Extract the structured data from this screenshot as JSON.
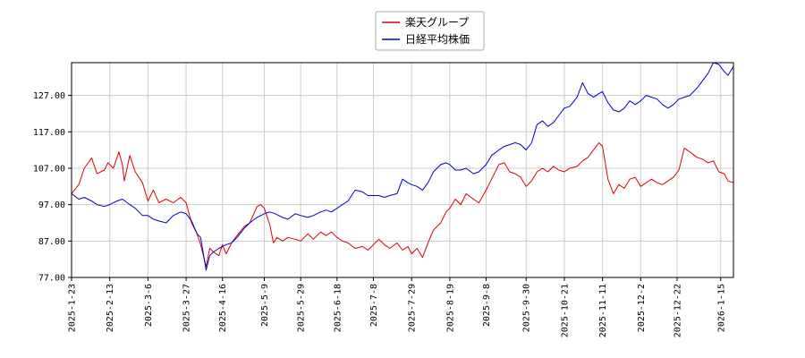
{
  "chart_data": {
    "type": "line",
    "title": "",
    "xlabel": "",
    "ylabel": "",
    "ylim": [
      77,
      136
    ],
    "x_range": [
      "2025-01-23",
      "2026-01-22"
    ],
    "yticks": [
      77,
      87,
      97,
      107,
      117,
      127
    ],
    "ytick_labels": [
      "77.00",
      "87.00",
      "97.00",
      "107.00",
      "117.00",
      "127.00"
    ],
    "xticks": [
      "2025-1-23",
      "2025-2-13",
      "2025-3-6",
      "2025-3-27",
      "2025-4-16",
      "2025-5-9",
      "2025-5-29",
      "2025-6-18",
      "2025-7-8",
      "2025-7-29",
      "2025-8-19",
      "2025-9-8",
      "2025-9-30",
      "2025-10-21",
      "2025-11-11",
      "2025-12-2",
      "2025-12-22",
      "2026-1-15"
    ],
    "grid": true,
    "legend_position": "top-center",
    "series": [
      {
        "name": "楽天グループ",
        "color": "#dd0000",
        "points": [
          [
            "2025-01-23",
            100.0
          ],
          [
            "2025-01-27",
            102.5
          ],
          [
            "2025-01-30",
            107.0
          ],
          [
            "2025-02-03",
            109.8
          ],
          [
            "2025-02-06",
            105.5
          ],
          [
            "2025-02-10",
            106.5
          ],
          [
            "2025-02-12",
            108.5
          ],
          [
            "2025-02-15",
            107.0
          ],
          [
            "2025-02-18",
            111.5
          ],
          [
            "2025-02-20",
            108.0
          ],
          [
            "2025-02-21",
            103.5
          ],
          [
            "2025-02-24",
            110.5
          ],
          [
            "2025-02-27",
            106.0
          ],
          [
            "2025-03-03",
            103.0
          ],
          [
            "2025-03-06",
            98.0
          ],
          [
            "2025-03-09",
            101.0
          ],
          [
            "2025-03-12",
            97.5
          ],
          [
            "2025-03-16",
            98.5
          ],
          [
            "2025-03-20",
            97.5
          ],
          [
            "2025-03-24",
            99.0
          ],
          [
            "2025-03-27",
            97.5
          ],
          [
            "2025-03-30",
            92.0
          ],
          [
            "2025-04-02",
            89.0
          ],
          [
            "2025-04-04",
            86.0
          ],
          [
            "2025-04-07",
            80.0
          ],
          [
            "2025-04-09",
            85.0
          ],
          [
            "2025-04-11",
            84.0
          ],
          [
            "2025-04-14",
            83.0
          ],
          [
            "2025-04-16",
            86.0
          ],
          [
            "2025-04-18",
            83.5
          ],
          [
            "2025-04-21",
            86.5
          ],
          [
            "2025-04-24",
            88.5
          ],
          [
            "2025-04-28",
            91.0
          ],
          [
            "2025-05-01",
            92.0
          ],
          [
            "2025-05-05",
            96.5
          ],
          [
            "2025-05-07",
            97.0
          ],
          [
            "2025-05-09",
            96.0
          ],
          [
            "2025-05-12",
            91.5
          ],
          [
            "2025-05-14",
            86.5
          ],
          [
            "2025-05-16",
            88.0
          ],
          [
            "2025-05-19",
            87.0
          ],
          [
            "2025-05-22",
            88.0
          ],
          [
            "2025-05-26",
            87.5
          ],
          [
            "2025-05-29",
            87.0
          ],
          [
            "2025-06-02",
            89.0
          ],
          [
            "2025-06-05",
            87.5
          ],
          [
            "2025-06-09",
            89.5
          ],
          [
            "2025-06-12",
            88.5
          ],
          [
            "2025-06-15",
            89.5
          ],
          [
            "2025-06-18",
            88.0
          ],
          [
            "2025-06-21",
            87.0
          ],
          [
            "2025-06-24",
            86.5
          ],
          [
            "2025-06-28",
            85.0
          ],
          [
            "2025-07-02",
            85.5
          ],
          [
            "2025-07-05",
            84.5
          ],
          [
            "2025-07-08",
            86.0
          ],
          [
            "2025-07-11",
            87.5
          ],
          [
            "2025-07-14",
            86.0
          ],
          [
            "2025-07-17",
            85.0
          ],
          [
            "2025-07-21",
            86.5
          ],
          [
            "2025-07-24",
            84.5
          ],
          [
            "2025-07-27",
            85.5
          ],
          [
            "2025-07-29",
            83.5
          ],
          [
            "2025-08-01",
            85.0
          ],
          [
            "2025-08-04",
            82.5
          ],
          [
            "2025-08-07",
            86.5
          ],
          [
            "2025-08-10",
            90.0
          ],
          [
            "2025-08-14",
            92.0
          ],
          [
            "2025-08-17",
            95.0
          ],
          [
            "2025-08-19",
            96.0
          ],
          [
            "2025-08-22",
            98.5
          ],
          [
            "2025-08-25",
            97.0
          ],
          [
            "2025-08-28",
            100.0
          ],
          [
            "2025-09-01",
            98.5
          ],
          [
            "2025-09-04",
            97.5
          ],
          [
            "2025-09-08",
            101.0
          ],
          [
            "2025-09-11",
            104.0
          ],
          [
            "2025-09-15",
            108.0
          ],
          [
            "2025-09-18",
            108.5
          ],
          [
            "2025-09-21",
            106.0
          ],
          [
            "2025-09-24",
            105.5
          ],
          [
            "2025-09-27",
            104.5
          ],
          [
            "2025-09-30",
            102.0
          ],
          [
            "2025-10-03",
            103.5
          ],
          [
            "2025-10-06",
            106.0
          ],
          [
            "2025-10-09",
            107.0
          ],
          [
            "2025-10-12",
            106.0
          ],
          [
            "2025-10-15",
            107.5
          ],
          [
            "2025-10-18",
            106.5
          ],
          [
            "2025-10-21",
            106.0
          ],
          [
            "2025-10-24",
            107.0
          ],
          [
            "2025-10-28",
            107.5
          ],
          [
            "2025-10-31",
            109.0
          ],
          [
            "2025-11-03",
            110.0
          ],
          [
            "2025-11-06",
            112.0
          ],
          [
            "2025-11-09",
            114.0
          ],
          [
            "2025-11-11",
            113.0
          ],
          [
            "2025-11-14",
            104.0
          ],
          [
            "2025-11-17",
            100.0
          ],
          [
            "2025-11-20",
            102.5
          ],
          [
            "2025-11-23",
            101.5
          ],
          [
            "2025-11-26",
            104.0
          ],
          [
            "2025-11-29",
            104.5
          ],
          [
            "2025-12-02",
            102.0
          ],
          [
            "2025-12-05",
            103.0
          ],
          [
            "2025-12-08",
            104.0
          ],
          [
            "2025-12-11",
            103.0
          ],
          [
            "2025-12-14",
            102.5
          ],
          [
            "2025-12-17",
            103.5
          ],
          [
            "2025-12-20",
            104.5
          ],
          [
            "2025-12-23",
            106.5
          ],
          [
            "2025-12-26",
            112.5
          ],
          [
            "2025-12-29",
            111.5
          ],
          [
            "2026-01-02",
            110.0
          ],
          [
            "2026-01-05",
            109.5
          ],
          [
            "2026-01-08",
            108.5
          ],
          [
            "2026-01-11",
            109.0
          ],
          [
            "2026-01-14",
            106.0
          ],
          [
            "2026-01-17",
            105.5
          ],
          [
            "2026-01-19",
            103.5
          ],
          [
            "2026-01-22",
            103.0
          ]
        ]
      },
      {
        "name": "日経平均株価",
        "color": "#0000cc",
        "points": [
          [
            "2025-01-23",
            100.0
          ],
          [
            "2025-01-27",
            98.5
          ],
          [
            "2025-01-30",
            99.0
          ],
          [
            "2025-02-03",
            98.0
          ],
          [
            "2025-02-06",
            97.0
          ],
          [
            "2025-02-10",
            96.5
          ],
          [
            "2025-02-13",
            97.0
          ],
          [
            "2025-02-17",
            98.0
          ],
          [
            "2025-02-20",
            98.5
          ],
          [
            "2025-02-24",
            97.0
          ],
          [
            "2025-02-27",
            96.0
          ],
          [
            "2025-03-03",
            94.0
          ],
          [
            "2025-03-06",
            94.0
          ],
          [
            "2025-03-09",
            93.0
          ],
          [
            "2025-03-12",
            92.5
          ],
          [
            "2025-03-16",
            92.0
          ],
          [
            "2025-03-20",
            94.0
          ],
          [
            "2025-03-24",
            95.0
          ],
          [
            "2025-03-27",
            94.5
          ],
          [
            "2025-03-30",
            92.5
          ],
          [
            "2025-04-02",
            89.0
          ],
          [
            "2025-04-04",
            88.0
          ],
          [
            "2025-04-07",
            79.0
          ],
          [
            "2025-04-09",
            83.0
          ],
          [
            "2025-04-11",
            84.0
          ],
          [
            "2025-04-14",
            85.0
          ],
          [
            "2025-04-16",
            85.5
          ],
          [
            "2025-04-18",
            86.0
          ],
          [
            "2025-04-21",
            86.5
          ],
          [
            "2025-04-24",
            88.0
          ],
          [
            "2025-04-28",
            90.5
          ],
          [
            "2025-05-01",
            92.0
          ],
          [
            "2025-05-05",
            93.5
          ],
          [
            "2025-05-09",
            94.5
          ],
          [
            "2025-05-12",
            95.0
          ],
          [
            "2025-05-15",
            94.5
          ],
          [
            "2025-05-19",
            93.5
          ],
          [
            "2025-05-22",
            93.0
          ],
          [
            "2025-05-26",
            94.5
          ],
          [
            "2025-05-29",
            94.0
          ],
          [
            "2025-06-02",
            93.5
          ],
          [
            "2025-06-05",
            94.0
          ],
          [
            "2025-06-09",
            95.0
          ],
          [
            "2025-06-12",
            95.5
          ],
          [
            "2025-06-15",
            95.0
          ],
          [
            "2025-06-18",
            96.0
          ],
          [
            "2025-06-21",
            97.0
          ],
          [
            "2025-06-24",
            98.0
          ],
          [
            "2025-06-28",
            101.0
          ],
          [
            "2025-07-02",
            100.5
          ],
          [
            "2025-07-05",
            99.5
          ],
          [
            "2025-07-08",
            99.5
          ],
          [
            "2025-07-11",
            99.5
          ],
          [
            "2025-07-14",
            99.0
          ],
          [
            "2025-07-17",
            99.5
          ],
          [
            "2025-07-21",
            100.0
          ],
          [
            "2025-07-24",
            104.0
          ],
          [
            "2025-07-27",
            103.0
          ],
          [
            "2025-07-29",
            102.5
          ],
          [
            "2025-08-01",
            102.0
          ],
          [
            "2025-08-04",
            101.0
          ],
          [
            "2025-08-07",
            103.0
          ],
          [
            "2025-08-10",
            106.0
          ],
          [
            "2025-08-14",
            108.0
          ],
          [
            "2025-08-17",
            108.5
          ],
          [
            "2025-08-19",
            108.0
          ],
          [
            "2025-08-22",
            106.5
          ],
          [
            "2025-08-25",
            106.5
          ],
          [
            "2025-08-28",
            107.0
          ],
          [
            "2025-09-01",
            105.5
          ],
          [
            "2025-09-04",
            106.0
          ],
          [
            "2025-09-08",
            108.0
          ],
          [
            "2025-09-11",
            110.5
          ],
          [
            "2025-09-15",
            112.0
          ],
          [
            "2025-09-18",
            113.0
          ],
          [
            "2025-09-21",
            113.5
          ],
          [
            "2025-09-24",
            114.0
          ],
          [
            "2025-09-27",
            113.5
          ],
          [
            "2025-09-30",
            112.0
          ],
          [
            "2025-10-03",
            114.0
          ],
          [
            "2025-10-06",
            119.0
          ],
          [
            "2025-10-09",
            120.0
          ],
          [
            "2025-10-12",
            118.5
          ],
          [
            "2025-10-15",
            119.5
          ],
          [
            "2025-10-18",
            121.5
          ],
          [
            "2025-10-21",
            123.5
          ],
          [
            "2025-10-24",
            124.0
          ],
          [
            "2025-10-28",
            126.5
          ],
          [
            "2025-10-31",
            130.5
          ],
          [
            "2025-11-03",
            127.5
          ],
          [
            "2025-11-06",
            126.5
          ],
          [
            "2025-11-09",
            127.5
          ],
          [
            "2025-11-11",
            128.0
          ],
          [
            "2025-11-14",
            125.0
          ],
          [
            "2025-11-17",
            123.0
          ],
          [
            "2025-11-20",
            122.5
          ],
          [
            "2025-11-23",
            123.5
          ],
          [
            "2025-11-26",
            125.5
          ],
          [
            "2025-11-29",
            124.5
          ],
          [
            "2025-12-02",
            125.5
          ],
          [
            "2025-12-05",
            127.0
          ],
          [
            "2025-12-08",
            126.5
          ],
          [
            "2025-12-11",
            126.0
          ],
          [
            "2025-12-14",
            124.5
          ],
          [
            "2025-12-17",
            123.5
          ],
          [
            "2025-12-20",
            124.5
          ],
          [
            "2025-12-23",
            126.0
          ],
          [
            "2025-12-26",
            126.5
          ],
          [
            "2025-12-29",
            127.0
          ],
          [
            "2026-01-02",
            129.0
          ],
          [
            "2026-01-05",
            131.0
          ],
          [
            "2026-01-08",
            133.0
          ],
          [
            "2026-01-11",
            136.0
          ],
          [
            "2026-01-14",
            135.5
          ],
          [
            "2026-01-17",
            133.5
          ],
          [
            "2026-01-19",
            132.5
          ],
          [
            "2026-01-22",
            135.0
          ]
        ]
      }
    ]
  }
}
